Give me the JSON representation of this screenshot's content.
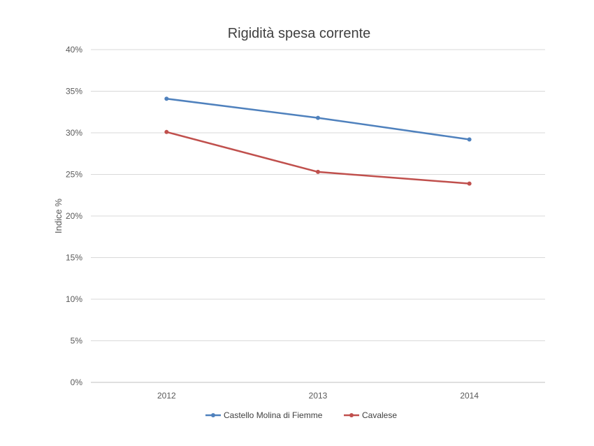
{
  "chart_data": {
    "type": "line",
    "title": "Rigidità spesa corrente",
    "xlabel": "",
    "ylabel": "Indice %",
    "categories": [
      "2012",
      "2013",
      "2014"
    ],
    "ylim": [
      0,
      40
    ],
    "yticks": [
      0,
      5,
      10,
      15,
      20,
      25,
      30,
      35,
      40
    ],
    "ytick_labels": [
      "0%",
      "5%",
      "10%",
      "15%",
      "20%",
      "25%",
      "30%",
      "35%",
      "40%"
    ],
    "grid": true,
    "legend_position": "bottom",
    "series": [
      {
        "name": "Castello Molina di Fiemme",
        "color": "#4f81bd",
        "values": [
          34.1,
          31.8,
          29.2
        ]
      },
      {
        "name": "Cavalese",
        "color": "#c0504d",
        "values": [
          30.1,
          25.3,
          23.9
        ]
      }
    ]
  }
}
